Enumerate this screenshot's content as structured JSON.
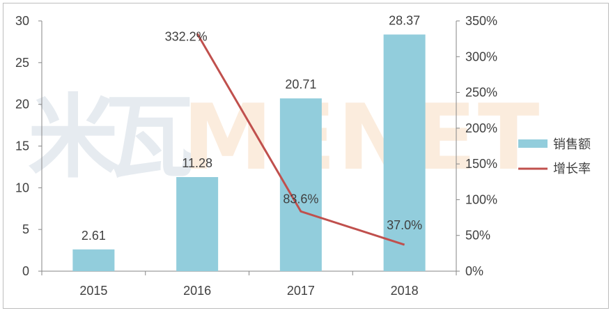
{
  "chart_data": {
    "type": "bar",
    "categories": [
      "2015",
      "2016",
      "2017",
      "2018"
    ],
    "series": [
      {
        "name": "销售额",
        "type": "bar",
        "axis": "left",
        "values": [
          2.61,
          11.28,
          20.71,
          28.37
        ],
        "labels": [
          "2.61",
          "11.28",
          "20.71",
          "28.37"
        ]
      },
      {
        "name": "增长率",
        "type": "line",
        "axis": "right",
        "x": [
          "2016",
          "2017",
          "2018"
        ],
        "values": [
          332.2,
          83.6,
          37.0
        ],
        "labels": [
          "332.2%",
          "83.6%",
          "37.0%"
        ]
      }
    ],
    "y_left": {
      "lim": [
        0,
        30
      ],
      "ticks": [
        "0",
        "5",
        "10",
        "15",
        "20",
        "25",
        "30"
      ]
    },
    "y_right": {
      "lim": [
        0,
        350
      ],
      "ticks": [
        "0%",
        "50%",
        "100%",
        "150%",
        "200%",
        "250%",
        "300%",
        "350%"
      ]
    },
    "grid": false,
    "legend_position": "right",
    "colors": {
      "bar": "#92cddc",
      "line": "#c0504d",
      "axis": "#868686",
      "text": "#404040"
    }
  },
  "watermark": "MENET"
}
